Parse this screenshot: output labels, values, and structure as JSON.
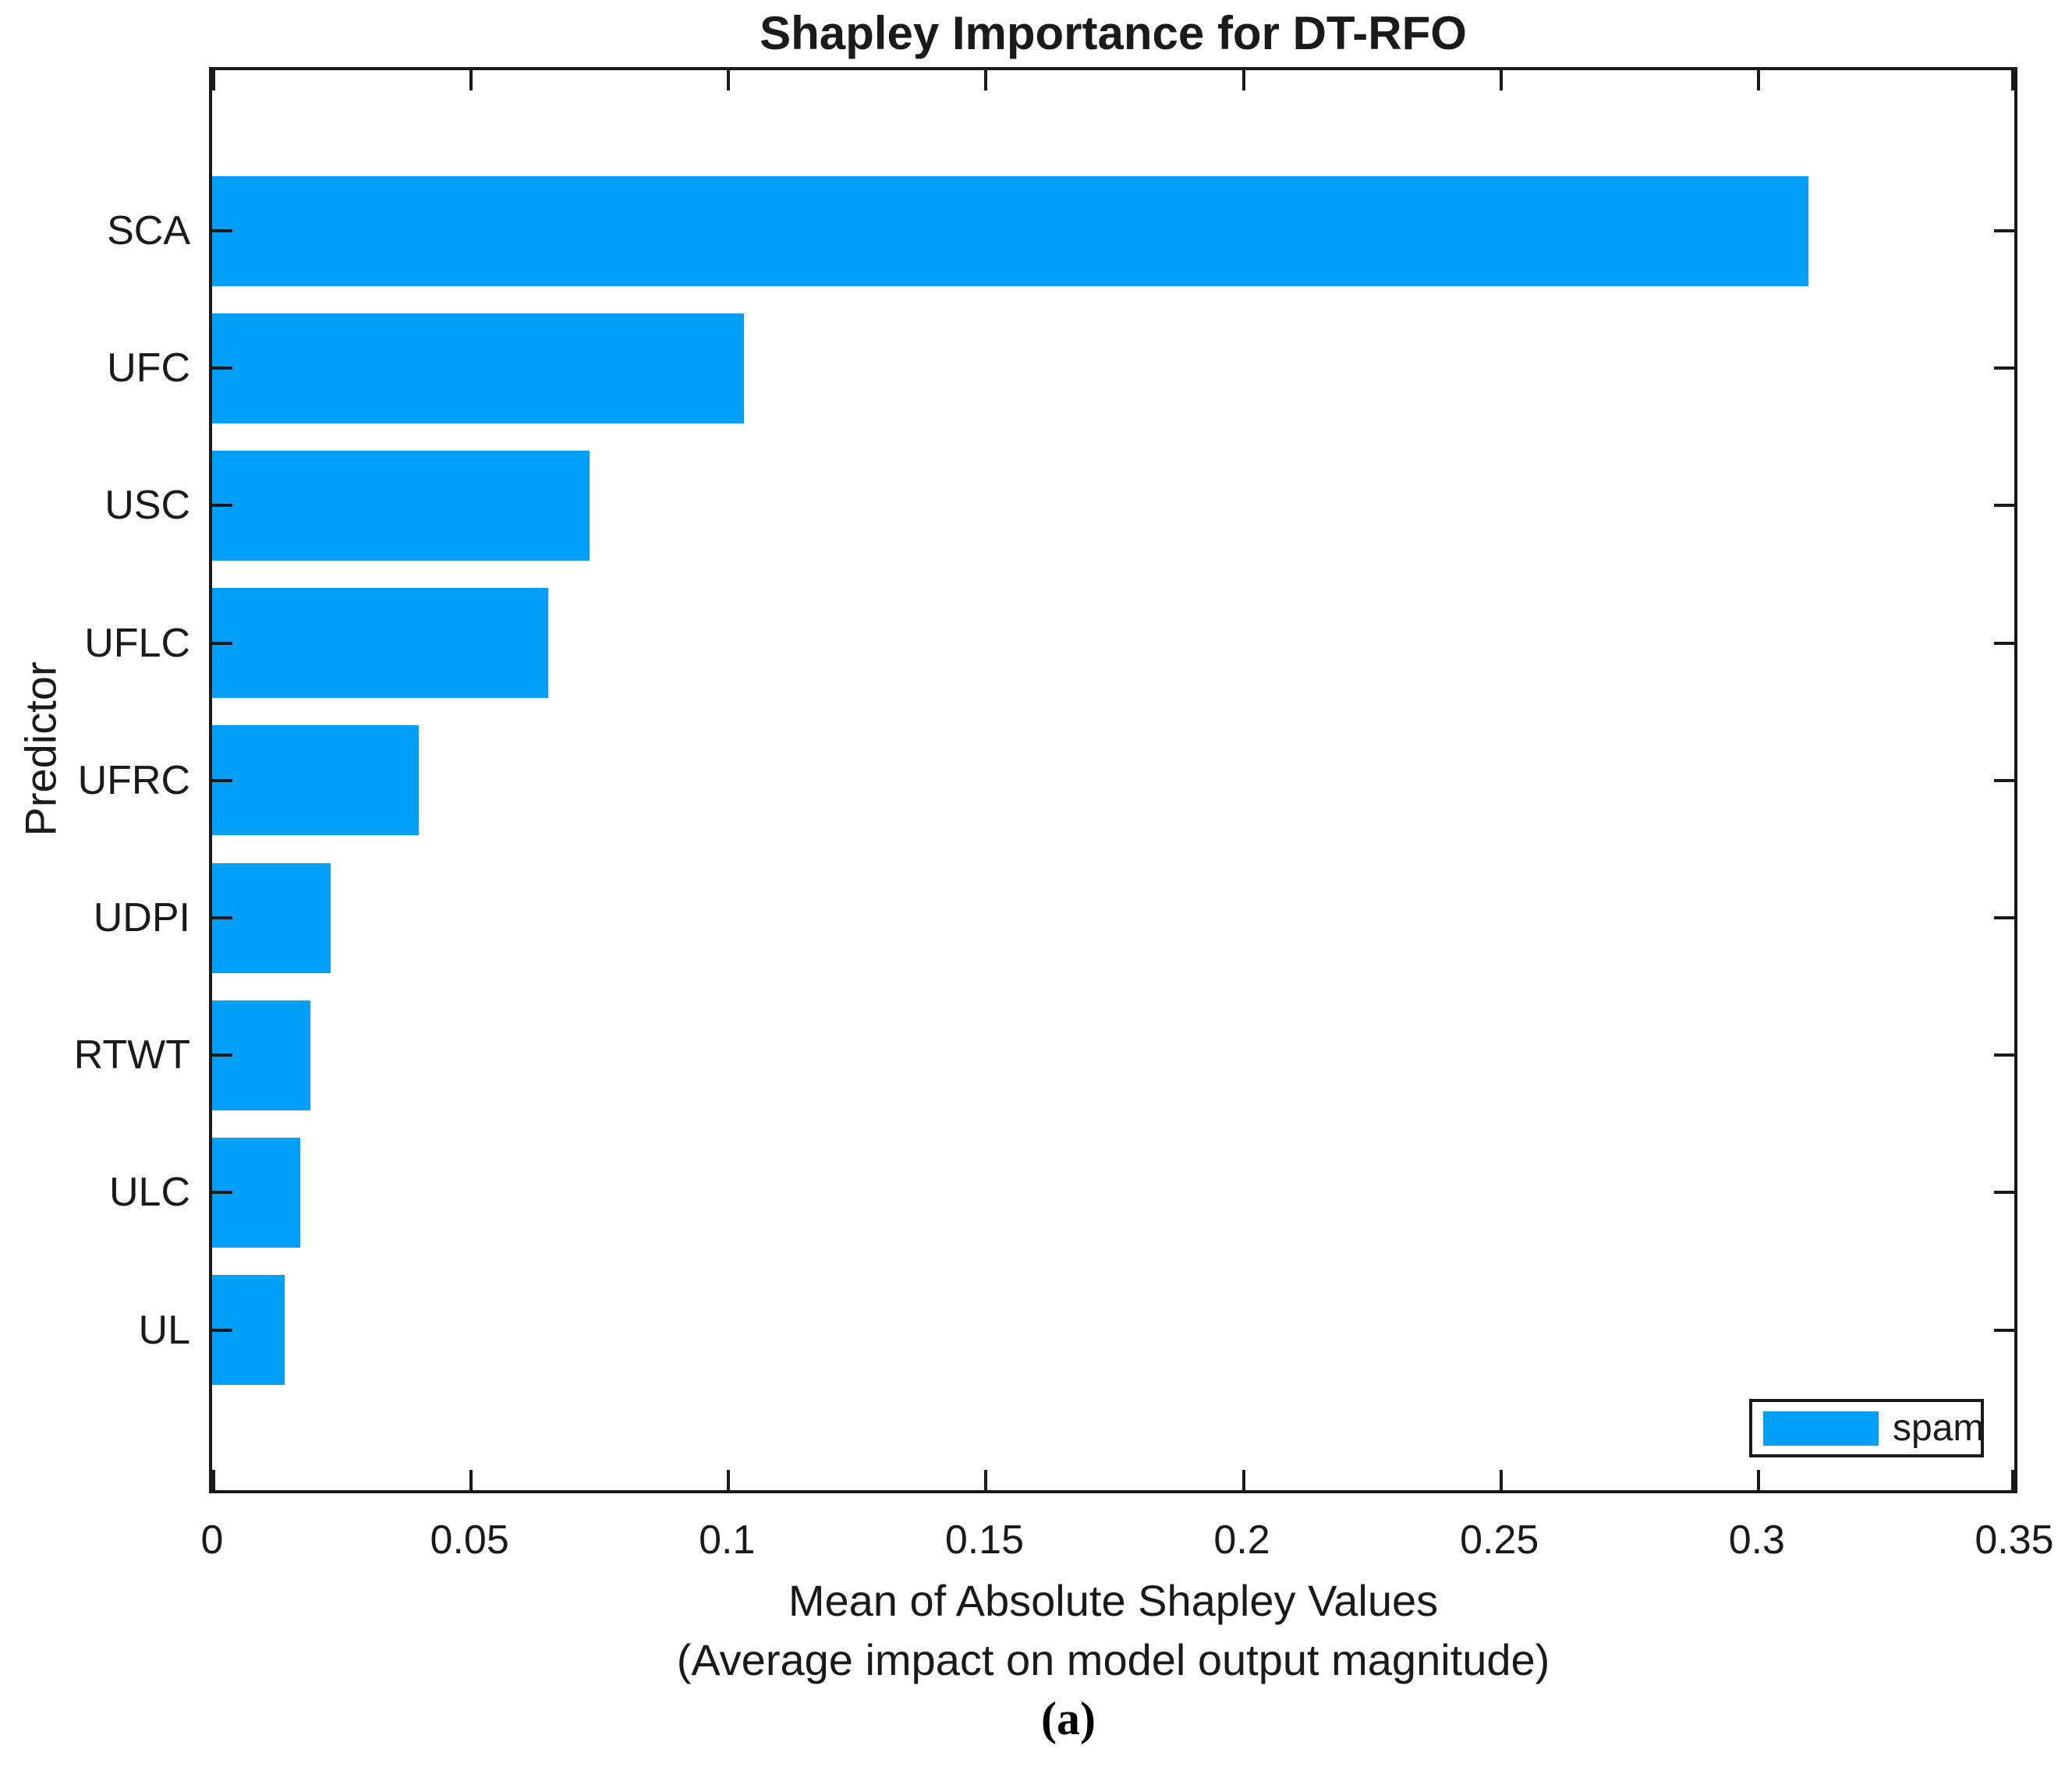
{
  "figure": {
    "title": "Shapley Importance for DT-RFO",
    "ylabel": "Predictor",
    "xlabel_line1": "Mean of Absolute Shapley Values",
    "xlabel_line2": "(Average impact on model output magnitude)",
    "caption": "(a)",
    "legend": {
      "label": "spam"
    },
    "colors": {
      "bar": "#00A0FA",
      "axis": "#1a1a1a",
      "background": "#ffffff"
    }
  },
  "chart_data": {
    "type": "bar",
    "orientation": "horizontal",
    "title": "Shapley Importance for DT-RFO",
    "xlabel": "Mean of Absolute Shapley Values (Average impact on model output magnitude)",
    "ylabel": "Predictor",
    "categories": [
      "SCA",
      "UFC",
      "USC",
      "UFLC",
      "UFRC",
      "UDPI",
      "RTWT",
      "ULC",
      "UL"
    ],
    "series": [
      {
        "name": "spam",
        "values": [
          0.309,
          0.103,
          0.073,
          0.065,
          0.04,
          0.023,
          0.019,
          0.017,
          0.014
        ]
      }
    ],
    "xlim": [
      0,
      0.35
    ],
    "xticks": [
      0,
      0.05,
      0.1,
      0.15,
      0.2,
      0.25,
      0.3,
      0.35
    ],
    "xtick_labels": [
      "0",
      "0.05",
      "0.1",
      "0.15",
      "0.2",
      "0.25",
      "0.3",
      "0.35"
    ],
    "grid": false,
    "tick_direction": "in",
    "legend_position": "lower right",
    "bar_color": "#00A0FA"
  }
}
